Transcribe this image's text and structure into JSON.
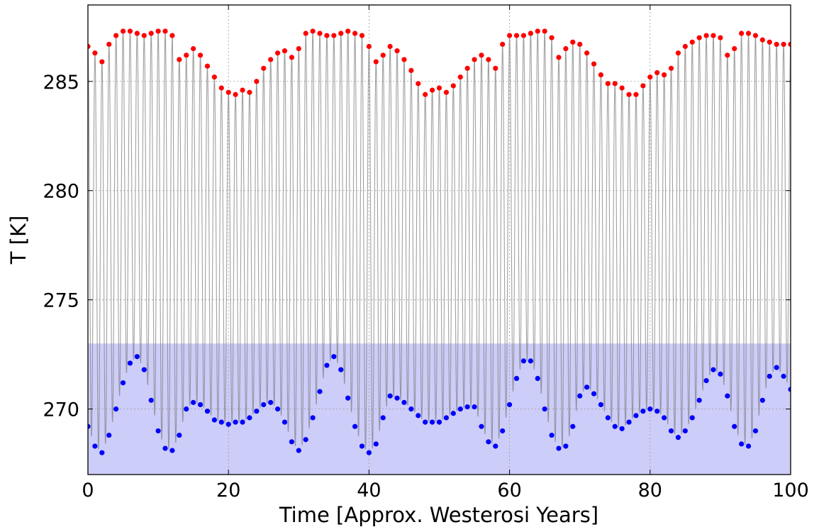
{
  "chart_data": {
    "type": "scatter",
    "title": "",
    "xlabel": "Time [Approx. Westerosi Years]",
    "ylabel": "T [K]",
    "xlim": [
      0,
      100
    ],
    "ylim": [
      267.0,
      288.5
    ],
    "grid": true,
    "xticks": [
      0,
      20,
      40,
      60,
      80,
      100
    ],
    "xtick_labels": [
      "0",
      "20",
      "40",
      "60",
      "80",
      "100"
    ],
    "yticks": [
      270,
      275,
      280,
      285
    ],
    "ytick_labels": [
      "270",
      "275",
      "280",
      "285"
    ],
    "freezing_shade": {
      "below": 273.0,
      "color": "#c8c8f8"
    },
    "background_trace": {
      "color": "#808080",
      "description_range": [
        268,
        287.4
      ]
    },
    "series": [
      {
        "color": "#ff0000",
        "marker": "circle",
        "x": [
          0,
          1,
          2,
          3,
          4,
          5,
          6,
          7,
          8,
          9,
          10,
          11,
          12,
          13,
          14,
          15,
          16,
          17,
          18,
          19,
          20,
          21,
          22,
          23,
          24,
          25,
          26,
          27,
          28,
          29,
          30,
          31,
          32,
          33,
          34,
          35,
          36,
          37,
          38,
          39,
          40,
          41,
          42,
          43,
          44,
          45,
          46,
          47,
          48,
          49,
          50,
          51,
          52,
          53,
          54,
          55,
          56,
          57,
          58,
          59,
          60,
          61,
          62,
          63,
          64,
          65,
          66,
          67,
          68,
          69,
          70,
          71,
          72,
          73,
          74,
          75,
          76,
          77,
          78,
          79,
          80,
          81,
          82,
          83,
          84,
          85,
          86,
          87,
          88,
          89,
          90,
          91,
          92,
          93,
          94,
          95,
          96,
          97,
          98,
          99,
          100
        ],
        "values": [
          286.6,
          286.3,
          285.9,
          286.7,
          287.1,
          287.3,
          287.3,
          287.2,
          287.1,
          287.2,
          287.3,
          287.3,
          287.1,
          286.0,
          286.2,
          286.5,
          286.2,
          285.7,
          285.2,
          284.7,
          284.5,
          284.4,
          284.6,
          284.5,
          285.0,
          285.6,
          286.0,
          286.3,
          286.4,
          286.1,
          286.5,
          287.2,
          287.3,
          287.2,
          287.1,
          287.1,
          287.2,
          287.3,
          287.2,
          287.1,
          286.6,
          285.9,
          286.2,
          286.6,
          286.4,
          286.0,
          285.5,
          284.9,
          284.4,
          284.6,
          284.7,
          284.5,
          284.8,
          285.2,
          285.6,
          286.0,
          286.2,
          286.0,
          285.6,
          286.7,
          287.1,
          287.1,
          287.1,
          287.2,
          287.3,
          287.3,
          287.0,
          286.1,
          286.5,
          286.8,
          286.7,
          286.3,
          285.8,
          285.3,
          284.9,
          284.9,
          284.7,
          284.4,
          284.4,
          284.8,
          285.2,
          285.4,
          285.3,
          285.6,
          286.3,
          286.6,
          286.8,
          287.0,
          287.1,
          287.1,
          287.0,
          286.2,
          286.5,
          287.2,
          287.2,
          287.1,
          286.9,
          286.8,
          286.7,
          286.7,
          286.7
        ]
      },
      {
        "color": "#0000ff",
        "marker": "circle",
        "x": [
          0,
          1,
          2,
          3,
          4,
          5,
          6,
          7,
          8,
          9,
          10,
          11,
          12,
          13,
          14,
          15,
          16,
          17,
          18,
          19,
          20,
          21,
          22,
          23,
          24,
          25,
          26,
          27,
          28,
          29,
          30,
          31,
          32,
          33,
          34,
          35,
          36,
          37,
          38,
          39,
          40,
          41,
          42,
          43,
          44,
          45,
          46,
          47,
          48,
          49,
          50,
          51,
          52,
          53,
          54,
          55,
          56,
          57,
          58,
          59,
          60,
          61,
          62,
          63,
          64,
          65,
          66,
          67,
          68,
          69,
          70,
          71,
          72,
          73,
          74,
          75,
          76,
          77,
          78,
          79,
          80,
          81,
          82,
          83,
          84,
          85,
          86,
          87,
          88,
          89,
          90,
          91,
          92,
          93,
          94,
          95,
          96,
          97,
          98,
          99,
          100
        ],
        "values": [
          269.2,
          268.3,
          268.0,
          268.8,
          270.0,
          271.2,
          272.1,
          272.4,
          271.8,
          270.4,
          269.0,
          268.2,
          268.1,
          268.8,
          270.0,
          270.3,
          270.2,
          269.9,
          269.5,
          269.4,
          269.3,
          269.4,
          269.4,
          269.6,
          269.9,
          270.2,
          270.3,
          270.0,
          269.4,
          268.5,
          268.1,
          268.6,
          269.6,
          270.8,
          272.0,
          272.4,
          271.8,
          270.5,
          269.2,
          268.3,
          268.0,
          268.4,
          269.6,
          270.6,
          270.5,
          270.3,
          270.0,
          269.7,
          269.4,
          269.4,
          269.4,
          269.6,
          269.8,
          270.0,
          270.1,
          270.1,
          269.2,
          268.5,
          268.3,
          269.0,
          270.2,
          271.4,
          272.2,
          272.2,
          271.4,
          270.0,
          268.8,
          268.2,
          268.3,
          269.2,
          270.6,
          271.0,
          270.7,
          270.2,
          269.6,
          269.2,
          269.1,
          269.4,
          269.7,
          269.9,
          270.0,
          269.9,
          269.6,
          269.0,
          268.7,
          269.0,
          269.6,
          270.4,
          271.3,
          271.8,
          271.6,
          270.6,
          269.2,
          268.4,
          268.3,
          269.0,
          270.4,
          271.5,
          271.9,
          271.5,
          270.9
        ]
      }
    ]
  }
}
